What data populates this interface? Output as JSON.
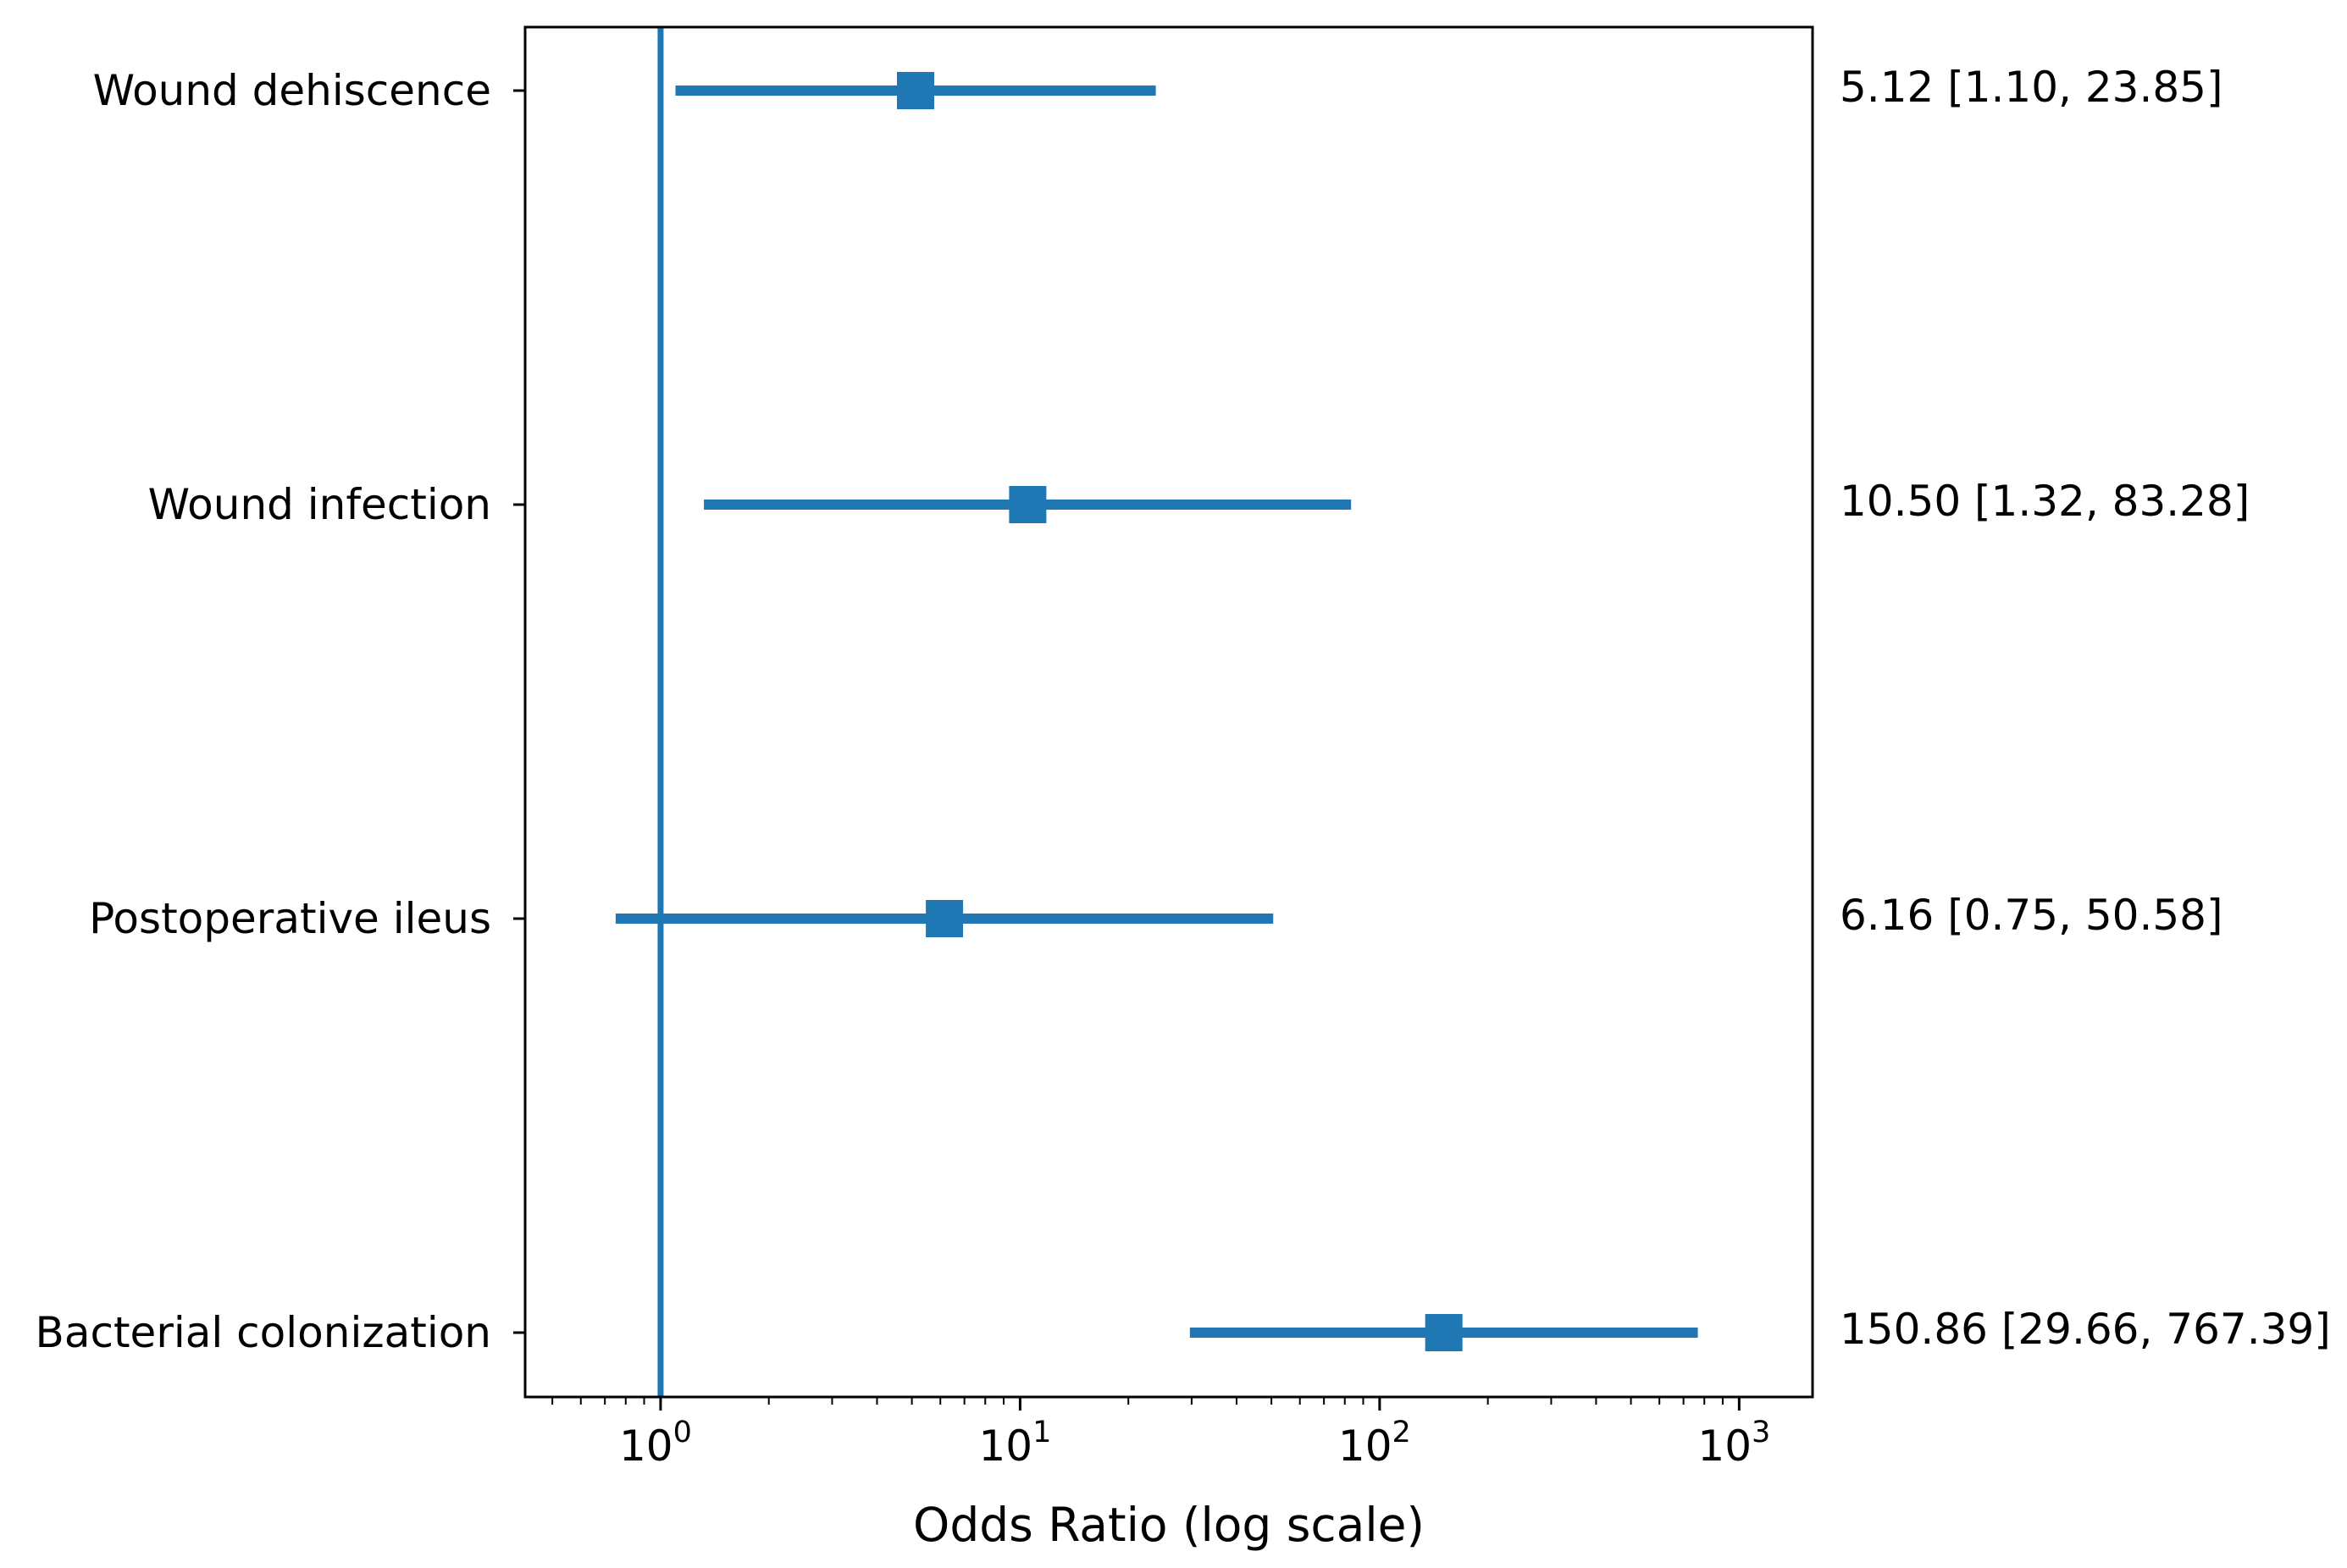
{
  "chart_data": {
    "type": "forest",
    "xlabel": "Odds Ratio (log scale)",
    "ylabel": "",
    "x_scale": "log",
    "xlim": [
      0.42,
      1600
    ],
    "x_ticks": [
      {
        "value": 1,
        "base": "10",
        "exp": "0"
      },
      {
        "value": 10,
        "base": "10",
        "exp": "1"
      },
      {
        "value": 100,
        "base": "10",
        "exp": "2"
      },
      {
        "value": 1000,
        "base": "10",
        "exp": "3"
      }
    ],
    "reference_line": 1,
    "color": "#1f77b4",
    "grid": false,
    "rows": [
      {
        "label": "Wound dehiscence",
        "or": 5.12,
        "lower": 1.1,
        "upper": 23.85,
        "ci_text": "5.12 [1.10, 23.85]"
      },
      {
        "label": "Wound infection",
        "or": 10.5,
        "lower": 1.32,
        "upper": 83.28,
        "ci_text": "10.50 [1.32, 83.28]"
      },
      {
        "label": "Postoperative ileus",
        "or": 6.16,
        "lower": 0.75,
        "upper": 50.58,
        "ci_text": "6.16 [0.75, 50.58]"
      },
      {
        "label": "Bacterial colonization",
        "or": 150.86,
        "lower": 29.66,
        "upper": 767.39,
        "ci_text": "150.86 [29.66, 767.39]"
      }
    ]
  }
}
